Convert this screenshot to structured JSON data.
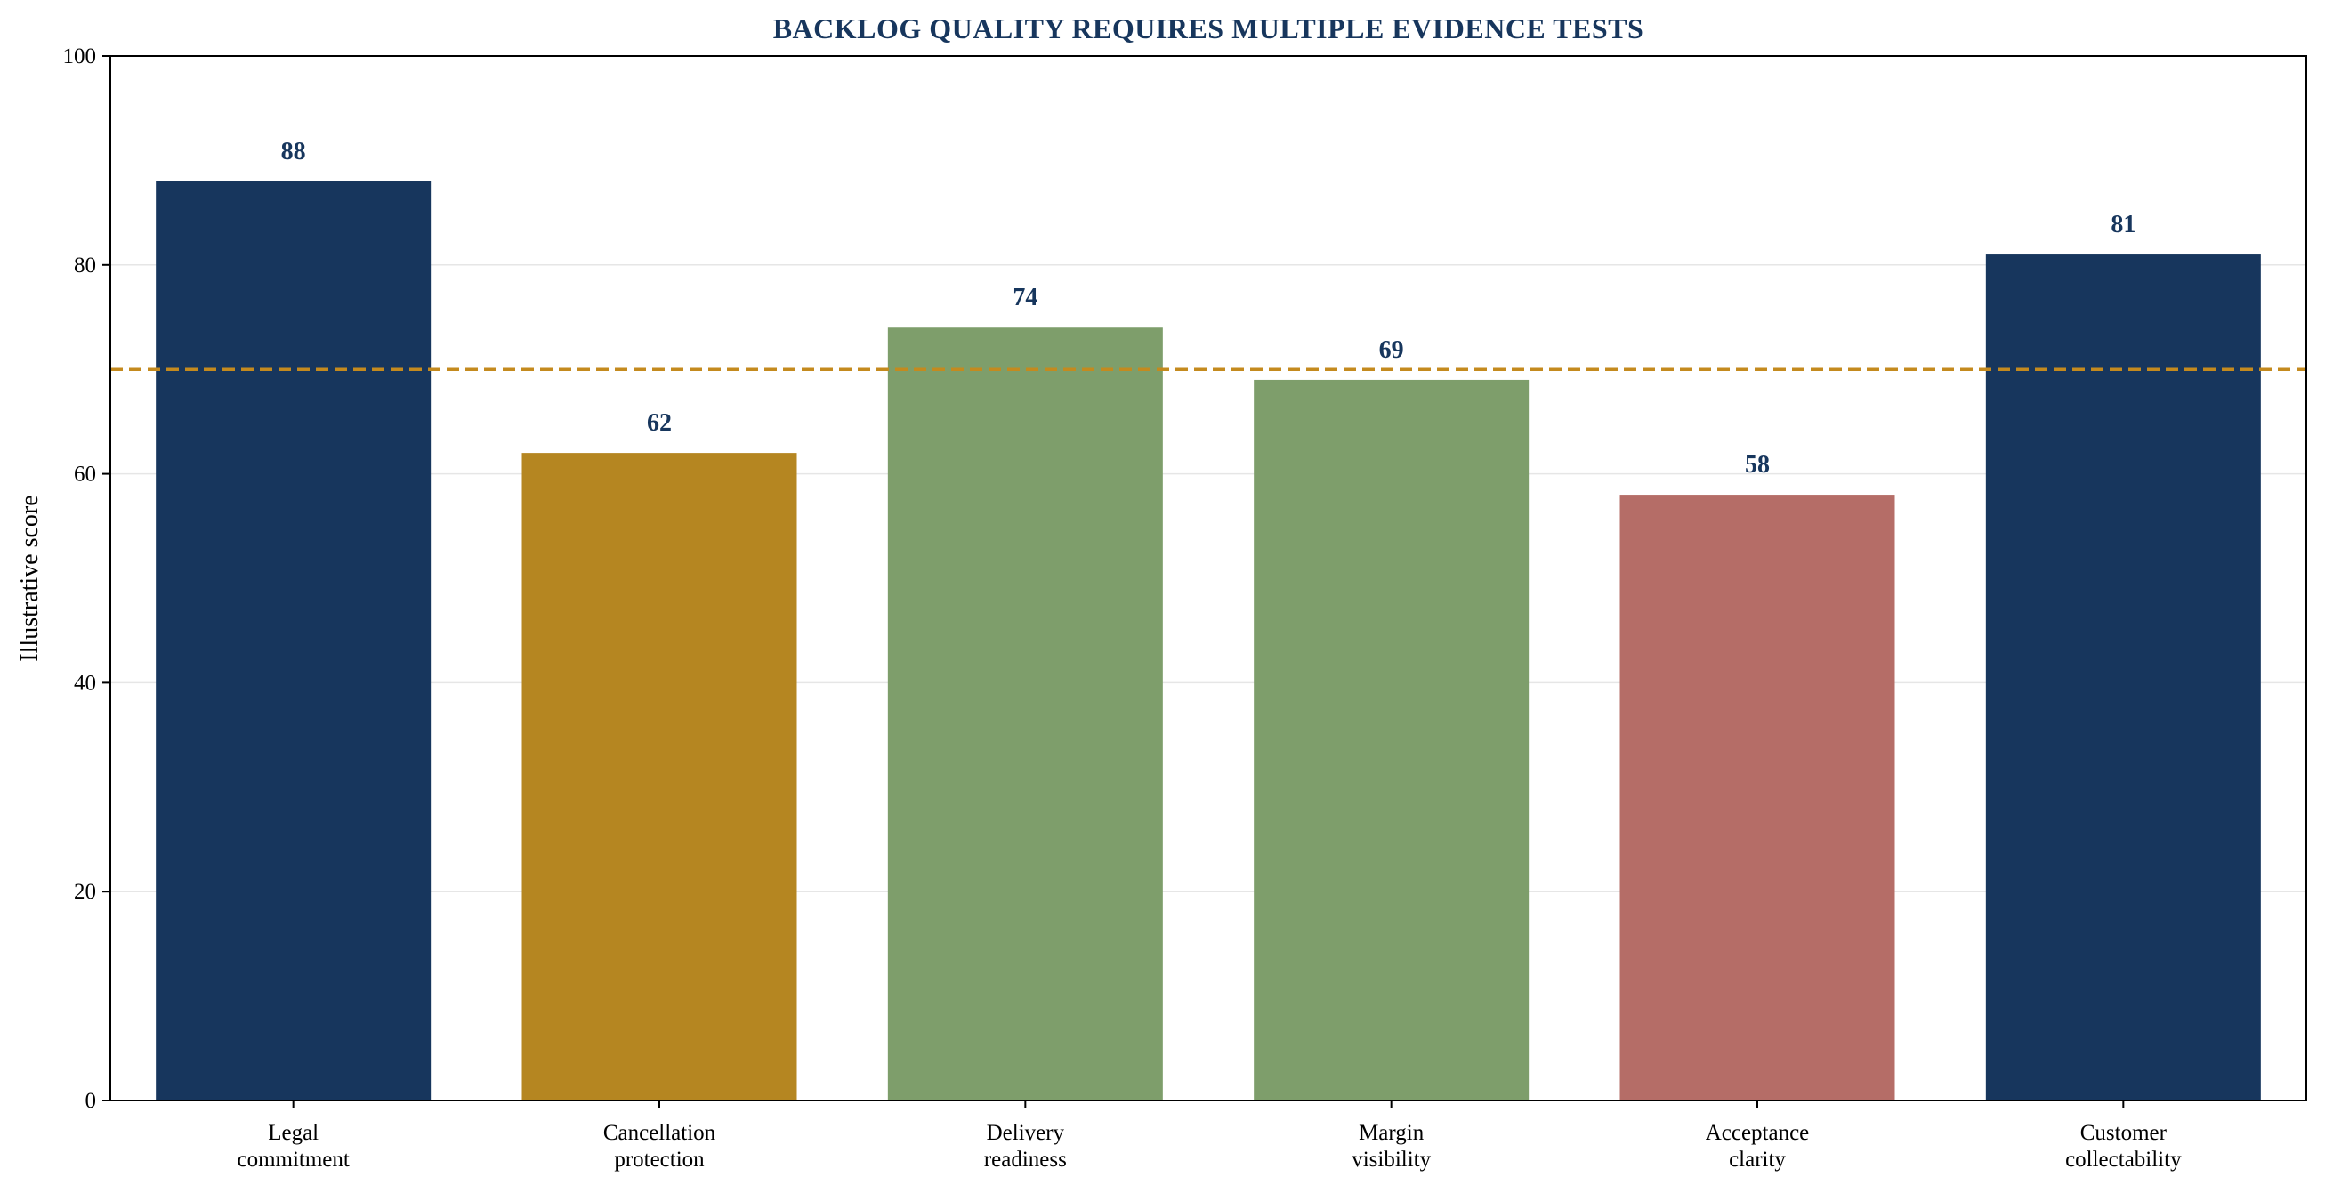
{
  "chart_data": {
    "type": "bar",
    "title": "BACKLOG QUALITY REQUIRES MULTIPLE EVIDENCE TESTS",
    "xlabel": "",
    "ylabel": "Illustrative score",
    "ylim": [
      0,
      100
    ],
    "yticks": [
      0,
      20,
      40,
      60,
      80,
      100
    ],
    "grid": "horizontal",
    "categories": [
      [
        "Legal",
        "commitment"
      ],
      [
        "Cancellation",
        "protection"
      ],
      [
        "Delivery",
        "readiness"
      ],
      [
        "Margin",
        "visibility"
      ],
      [
        "Acceptance",
        "clarity"
      ],
      [
        "Customer",
        "collectability"
      ]
    ],
    "values": [
      88,
      62,
      74,
      69,
      58,
      81
    ],
    "bar_colors": [
      "#17365d",
      "#b58621",
      "#7e9e6b",
      "#7e9e6b",
      "#b56d67",
      "#17365d"
    ],
    "reference_line": {
      "value": 70,
      "style": "dashed",
      "color": "#c48a1e"
    },
    "title_color": "#17365d",
    "data_label_color": "#17365d"
  }
}
